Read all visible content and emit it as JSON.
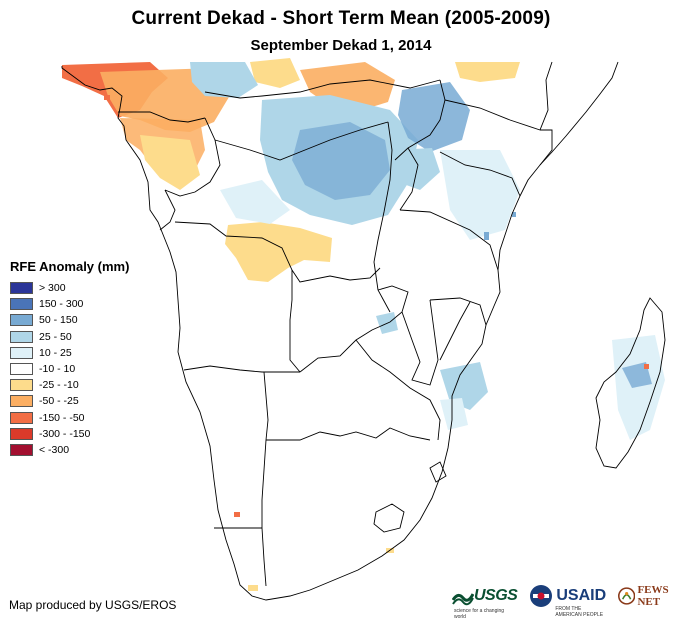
{
  "title": "Current Dekad - Short Term Mean (2005-2009)",
  "subtitle": "September Dekad 1, 2014",
  "legend": {
    "title": "RFE Anomaly (mm)",
    "items": [
      {
        "label": "> 300",
        "color": "#2b3598"
      },
      {
        "label": "150 - 300",
        "color": "#4a74b8"
      },
      {
        "label": "50 - 150",
        "color": "#78aad3"
      },
      {
        "label": "25 - 50",
        "color": "#afd6e8"
      },
      {
        "label": "10 - 25",
        "color": "#dff1f8"
      },
      {
        "label": "-10 - 10",
        "color": "#ffffff"
      },
      {
        "label": "-25 - -10",
        "color": "#fddc8c"
      },
      {
        "label": "-50 - -25",
        "color": "#fbae62"
      },
      {
        "label": "-150 - -50",
        "color": "#f26e45"
      },
      {
        "label": "-300 - -150",
        "color": "#db3a2a"
      },
      {
        "label": "< -300",
        "color": "#a20f2f"
      }
    ]
  },
  "credit": "Map produced by USGS/EROS",
  "logos": {
    "usgs": "USGS",
    "usgs_tagline": "science for a changing world",
    "usaid": "USAID",
    "usaid_tagline": "FROM THE AMERICAN PEOPLE",
    "fews": "FEWS NET"
  }
}
